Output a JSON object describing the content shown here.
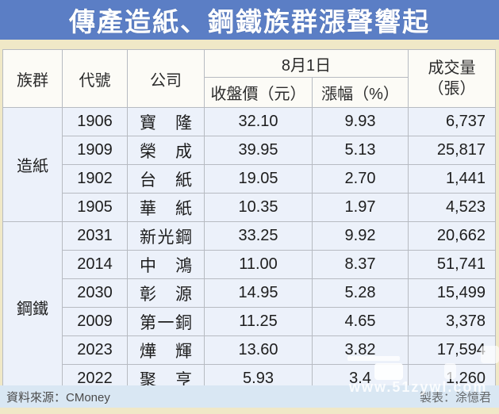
{
  "title": "傳產造紙、鋼鐵族群漲聲響起",
  "table": {
    "headers": {
      "group": "族群",
      "code": "代號",
      "company": "公司",
      "date": "8月1日",
      "close": "收盤價（元）",
      "change": "漲幅（%）",
      "volume_line1": "成交量",
      "volume_line2": "（張）"
    },
    "groups": [
      {
        "name": "造紙",
        "rows": [
          {
            "code": "1906",
            "company": "寶隆",
            "close": "32.10",
            "change": "9.93",
            "volume": "6,737"
          },
          {
            "code": "1909",
            "company": "榮成",
            "close": "39.95",
            "change": "5.13",
            "volume": "25,817"
          },
          {
            "code": "1902",
            "company": "台紙",
            "close": "19.05",
            "change": "2.70",
            "volume": "1,441"
          },
          {
            "code": "1905",
            "company": "華紙",
            "close": "10.35",
            "change": "1.97",
            "volume": "4,523"
          }
        ]
      },
      {
        "name": "鋼鐵",
        "rows": [
          {
            "code": "2031",
            "company": "新光鋼",
            "close": "33.25",
            "change": "9.92",
            "volume": "20,662"
          },
          {
            "code": "2014",
            "company": "中鴻",
            "close": "11.00",
            "change": "8.37",
            "volume": "51,741"
          },
          {
            "code": "2030",
            "company": "彰源",
            "close": "14.95",
            "change": "5.28",
            "volume": "15,499"
          },
          {
            "code": "2009",
            "company": "第一銅",
            "close": "11.25",
            "change": "4.65",
            "volume": "3,378"
          },
          {
            "code": "2023",
            "company": "燁輝",
            "close": "13.60",
            "change": "3.82",
            "volume": "17,594"
          },
          {
            "code": "2022",
            "company": "聚亨",
            "close": "5.93",
            "change": "3.4",
            "volume": "1,260"
          }
        ]
      }
    ]
  },
  "footer": {
    "source": "資料來源：CMoney",
    "credit": "製表：涂憶君"
  },
  "watermark": {
    "text": "www.51zywl.com"
  },
  "colors": {
    "title_bar": "#5b7ec5",
    "page_background": "#f0e8c7",
    "header_cell": "#fcfbf6",
    "data_cell": "#ecf1fa",
    "footer_strip": "#d9e7f3",
    "grid_border": "#b7bbc2"
  },
  "chart_data": {
    "type": "table",
    "title": "傳產造紙、鋼鐵族群漲聲響起",
    "date_header": "8月1日",
    "columns": [
      "族群",
      "代號",
      "公司",
      "收盤價（元）",
      "漲幅（%）",
      "成交量（張）"
    ],
    "rows": [
      [
        "造紙",
        "1906",
        "寶隆",
        32.1,
        9.93,
        6737
      ],
      [
        "造紙",
        "1909",
        "榮成",
        39.95,
        5.13,
        25817
      ],
      [
        "造紙",
        "1902",
        "台紙",
        19.05,
        2.7,
        1441
      ],
      [
        "造紙",
        "1905",
        "華紙",
        10.35,
        1.97,
        4523
      ],
      [
        "鋼鐵",
        "2031",
        "新光鋼",
        33.25,
        9.92,
        20662
      ],
      [
        "鋼鐵",
        "2014",
        "中鴻",
        11.0,
        8.37,
        51741
      ],
      [
        "鋼鐵",
        "2030",
        "彰源",
        14.95,
        5.28,
        15499
      ],
      [
        "鋼鐵",
        "2009",
        "第一銅",
        11.25,
        4.65,
        3378
      ],
      [
        "鋼鐵",
        "2023",
        "燁輝",
        13.6,
        3.82,
        17594
      ],
      [
        "鋼鐵",
        "2022",
        "聚亨",
        5.93,
        3.4,
        1260
      ]
    ],
    "source": "資料來源：CMoney",
    "credit": "製表：涂憶君"
  }
}
